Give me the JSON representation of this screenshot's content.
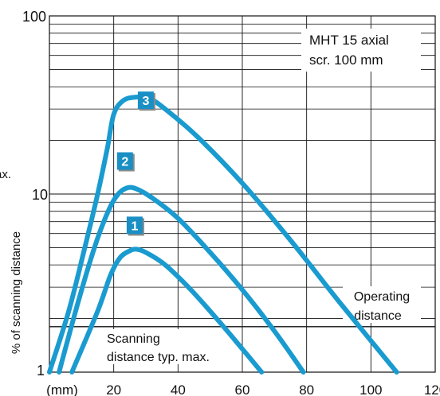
{
  "chart_data": {
    "type": "line",
    "x_scale": "linear",
    "y_scale": "log",
    "xlim": [
      0,
      120
    ],
    "ylim": [
      1,
      100
    ],
    "x_ticks": [
      20,
      40,
      60,
      80,
      100,
      120
    ],
    "x_tick_labels": [
      "20",
      "40",
      "60",
      "80",
      "100",
      "120"
    ],
    "x_unit_label": "(mm)",
    "y_ticks": [
      1,
      10,
      100
    ],
    "y_tick_labels": [
      "1",
      "10",
      "100"
    ],
    "ylabel": "% of scanning distance",
    "cut_off_text": "max.",
    "grid": true,
    "annotation_box": [
      "MHT 15 axial",
      "scr. 100 mm"
    ],
    "threshold": {
      "y": 1.8,
      "label_lines": [
        "Operating",
        "distance"
      ]
    },
    "bottom_note_lines": [
      "Scanning",
      "distance typ. max."
    ],
    "line_color": "#1a9bd0",
    "badge_color": "#1a8fc4",
    "series": [
      {
        "name": "1",
        "x": [
          7,
          15,
          19,
          22,
          25,
          27,
          30,
          36,
          44,
          52,
          60,
          66
        ],
        "y": [
          1.0,
          2.2,
          3.5,
          4.4,
          4.8,
          4.9,
          4.7,
          4.0,
          2.9,
          2.0,
          1.35,
          1.0
        ]
      },
      {
        "name": "2",
        "x": [
          3,
          9,
          14,
          18,
          21,
          24,
          27,
          32,
          40,
          50,
          60,
          70,
          79
        ],
        "y": [
          1.0,
          2.5,
          5.0,
          7.8,
          9.8,
          10.8,
          10.7,
          9.5,
          7.3,
          4.7,
          2.9,
          1.7,
          1.0
        ]
      },
      {
        "name": "3",
        "x": [
          0,
          6,
          11,
          15,
          18,
          20,
          23,
          27,
          31,
          36,
          46,
          60,
          75,
          90,
          108
        ],
        "y": [
          1.0,
          2.2,
          5.0,
          10.0,
          18.0,
          28.0,
          33.5,
          35.0,
          34.5,
          30.0,
          21.0,
          11.5,
          5.5,
          2.5,
          1.0
        ]
      }
    ]
  }
}
